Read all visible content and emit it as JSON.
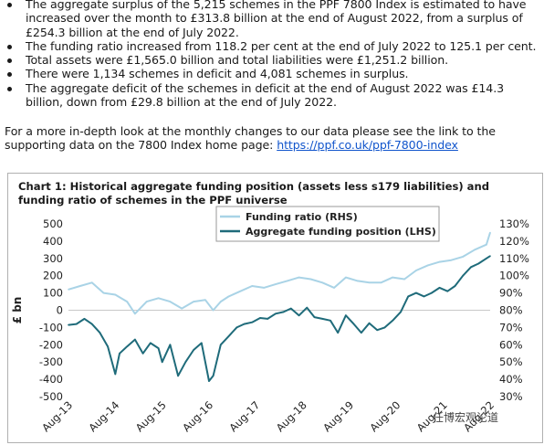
{
  "bullets": [
    "The aggregate surplus of the 5,215 schemes in the PPF 7800 Index is estimated to have increased over the month to £313.8 billion at the end of August 2022, from a surplus of £254.3 billion at the end of July 2022.",
    "The funding ratio increased from 118.2 per cent at the end of July 2022 to 125.1 per cent.",
    "Total assets were £1,565.0 billion and total liabilities were £1,251.2 billion.",
    "There were 1,134 schemes in deficit and 4,081 schemes in surplus.",
    "The aggregate deficit of the schemes in deficit at the end of August 2022 was £14.3 billion, down from £29.8 billion at the end of July 2022."
  ],
  "paragraph": {
    "text": "For a more in-depth look at the monthly changes to our data please see the link to the supporting data on the 7800 Index home page: ",
    "link": "https://ppf.co.uk/ppf-7800-index"
  },
  "watermark": "任博宏观论道",
  "chart_data": {
    "type": "line",
    "title": "Chart 1: Historical aggregate funding position (assets less s179 liabilities) and funding ratio of schemes in the PPF universe",
    "ylabel": "£ bn",
    "ylim": [
      -500,
      500
    ],
    "y_ticks": [
      "500",
      "400",
      "300",
      "200",
      "100",
      "0",
      "-100",
      "-200",
      "-300",
      "-400",
      "-500"
    ],
    "y2lim": [
      30,
      130
    ],
    "y2_ticks": [
      "130%",
      "120%",
      "110%",
      "100%",
      "90%",
      "80%",
      "70%",
      "60%",
      "50%",
      "40%",
      "30%"
    ],
    "x_ticks": [
      "Aug-13",
      "Aug-14",
      "Aug-15",
      "Aug-16",
      "Aug-17",
      "Aug-18",
      "Aug-19",
      "Aug-20",
      "Aug-21",
      "Aug-22"
    ],
    "colors": {
      "funding_ratio": "#a9d3e6",
      "aggregate_position": "#1f6b7a"
    },
    "legend_position": "top-center",
    "series": [
      {
        "name": "Funding ratio (RHS)",
        "axis": "right",
        "x": [
          2013.58,
          2013.83,
          2014.08,
          2014.33,
          2014.58,
          2014.83,
          2015.0,
          2015.25,
          2015.5,
          2015.75,
          2016.0,
          2016.25,
          2016.5,
          2016.67,
          2016.83,
          2017.0,
          2017.25,
          2017.5,
          2017.75,
          2018.0,
          2018.25,
          2018.5,
          2018.75,
          2019.0,
          2019.25,
          2019.5,
          2019.75,
          2020.0,
          2020.25,
          2020.5,
          2020.75,
          2021.0,
          2021.25,
          2021.5,
          2021.75,
          2022.0,
          2022.25,
          2022.5,
          2022.58
        ],
        "values": [
          92,
          94,
          96,
          90,
          89,
          85,
          78,
          85,
          87,
          85,
          81,
          85,
          86,
          80,
          85,
          88,
          91,
          94,
          93,
          95,
          97,
          99,
          98,
          96,
          93,
          99,
          97,
          96,
          96,
          99,
          98,
          103,
          106,
          108,
          109,
          111,
          115,
          118,
          125
        ]
      },
      {
        "name": "Aggregate funding position (LHS)",
        "axis": "left",
        "x": [
          2013.58,
          2013.75,
          2013.92,
          2014.08,
          2014.25,
          2014.42,
          2014.58,
          2014.67,
          2014.83,
          2015.0,
          2015.17,
          2015.33,
          2015.5,
          2015.58,
          2015.75,
          2015.92,
          2016.08,
          2016.25,
          2016.42,
          2016.58,
          2016.67,
          2016.83,
          2017.0,
          2017.17,
          2017.33,
          2017.5,
          2017.67,
          2017.83,
          2018.0,
          2018.17,
          2018.33,
          2018.5,
          2018.67,
          2018.83,
          2019.0,
          2019.17,
          2019.33,
          2019.5,
          2019.67,
          2019.83,
          2020.0,
          2020.17,
          2020.33,
          2020.5,
          2020.67,
          2020.83,
          2021.0,
          2021.17,
          2021.33,
          2021.5,
          2021.67,
          2021.83,
          2022.0,
          2022.17,
          2022.33,
          2022.5,
          2022.58
        ],
        "values": [
          -85,
          -80,
          -50,
          -80,
          -130,
          -210,
          -370,
          -250,
          -210,
          -170,
          -250,
          -190,
          -220,
          -300,
          -200,
          -380,
          -300,
          -230,
          -190,
          -410,
          -380,
          -200,
          -150,
          -100,
          -80,
          -70,
          -45,
          -50,
          -20,
          -10,
          10,
          -30,
          15,
          -40,
          -50,
          -60,
          -130,
          -30,
          -80,
          -130,
          -75,
          -115,
          -100,
          -60,
          -10,
          80,
          100,
          80,
          100,
          130,
          110,
          140,
          200,
          250,
          270,
          300,
          314
        ]
      }
    ]
  }
}
